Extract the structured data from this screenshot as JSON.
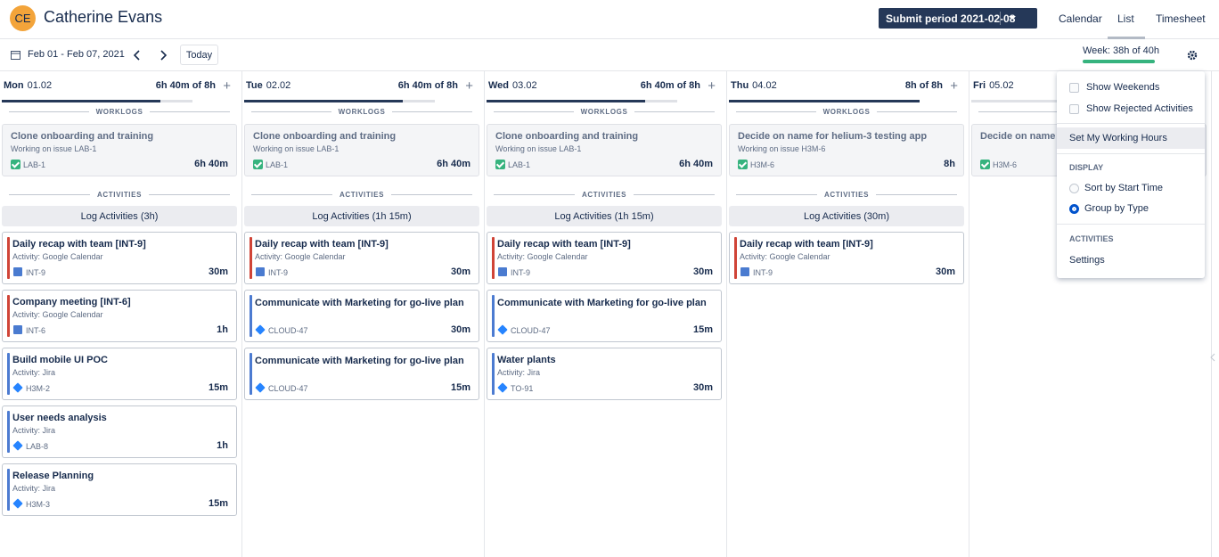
{
  "header": {
    "avatar": "CE",
    "user": "Catherine Evans",
    "submit": "Submit period 2021-02-08",
    "tabs": [
      "Calendar",
      "List",
      "Timesheet"
    ],
    "active_tab": 1
  },
  "toolbar": {
    "range": "Feb 01 - Feb 07, 2021",
    "today": "Today",
    "week": "Week: 38h of 40h"
  },
  "labels": {
    "worklogs": "WORKLOGS",
    "activities": "ACTIVITIES"
  },
  "days": [
    {
      "name": "Mon",
      "date": "01.02",
      "total": "6h 40m of 8h",
      "worklogs": [
        {
          "title": "Clone onboarding and training",
          "sub": "Working on issue LAB-1",
          "key": "LAB-1",
          "time": "6h 40m"
        }
      ],
      "log": "Log Activities (3h)",
      "activities": [
        {
          "title": "Daily recap with team [INT-9]",
          "sub": "Activity: Google Calendar",
          "key": "INT-9",
          "time": "30m",
          "source": "calendar"
        },
        {
          "title": "Company meeting [INT-6]",
          "sub": "Activity: Google Calendar",
          "key": "INT-6",
          "time": "1h",
          "source": "calendar"
        },
        {
          "title": "Build mobile UI POC",
          "sub": "Activity: Jira",
          "key": "H3M-2",
          "time": "15m",
          "source": "jira"
        },
        {
          "title": "User needs analysis",
          "sub": "Activity: Jira",
          "key": "LAB-8",
          "time": "1h",
          "source": "jira"
        },
        {
          "title": "Release Planning",
          "sub": "Activity: Jira",
          "key": "H3M-3",
          "time": "15m",
          "source": "jira"
        }
      ]
    },
    {
      "name": "Tue",
      "date": "02.02",
      "total": "6h 40m of 8h",
      "worklogs": [
        {
          "title": "Clone onboarding and training",
          "sub": "Working on issue LAB-1",
          "key": "LAB-1",
          "time": "6h 40m"
        }
      ],
      "log": "Log Activities (1h 15m)",
      "activities": [
        {
          "title": "Daily recap with team [INT-9]",
          "sub": "Activity: Google Calendar",
          "key": "INT-9",
          "time": "30m",
          "source": "calendar"
        },
        {
          "title": "Communicate with Marketing for go-live plan",
          "key": "CLOUD-47",
          "time": "30m",
          "source": "jira"
        },
        {
          "title": "Communicate with Marketing for go-live plan",
          "key": "CLOUD-47",
          "time": "15m",
          "source": "jira"
        }
      ]
    },
    {
      "name": "Wed",
      "date": "03.02",
      "total": "6h 40m of 8h",
      "worklogs": [
        {
          "title": "Clone onboarding and training",
          "sub": "Working on issue LAB-1",
          "key": "LAB-1",
          "time": "6h 40m"
        }
      ],
      "log": "Log Activities (1h 15m)",
      "activities": [
        {
          "title": "Daily recap with team [INT-9]",
          "sub": "Activity: Google Calendar",
          "key": "INT-9",
          "time": "30m",
          "source": "calendar"
        },
        {
          "title": "Communicate with Marketing for go-live plan",
          "key": "CLOUD-47",
          "time": "15m",
          "source": "jira"
        },
        {
          "title": "Water plants",
          "sub": "Activity: Jira",
          "key": "TO-91",
          "time": "30m",
          "source": "jira"
        }
      ]
    },
    {
      "name": "Thu",
      "date": "04.02",
      "total": "8h of 8h",
      "worklogs": [
        {
          "title": "Decide on name for helium-3 testing app",
          "sub": "Working on issue H3M-6",
          "key": "H3M-6",
          "time": "8h"
        }
      ],
      "log": "Log Activities (30m)",
      "activities": [
        {
          "title": "Daily recap with team [INT-9]",
          "sub": "Activity: Google Calendar",
          "key": "INT-9",
          "time": "30m",
          "source": "calendar"
        }
      ]
    },
    {
      "name": "Fri",
      "date": "05.02",
      "worklogs": [
        {
          "title": "Decide on name for helium-3 testing app",
          "key": "H3M-6"
        }
      ]
    }
  ],
  "menu": {
    "checks": [
      "Show Weekends",
      "Show Rejected Activities"
    ],
    "hours": "Set My Working Hours",
    "display": "DISPLAY",
    "radios": [
      "Sort by Start Time",
      "Group by Type"
    ],
    "selected": 1,
    "activities": "ACTIVITIES",
    "settings": "Settings"
  }
}
